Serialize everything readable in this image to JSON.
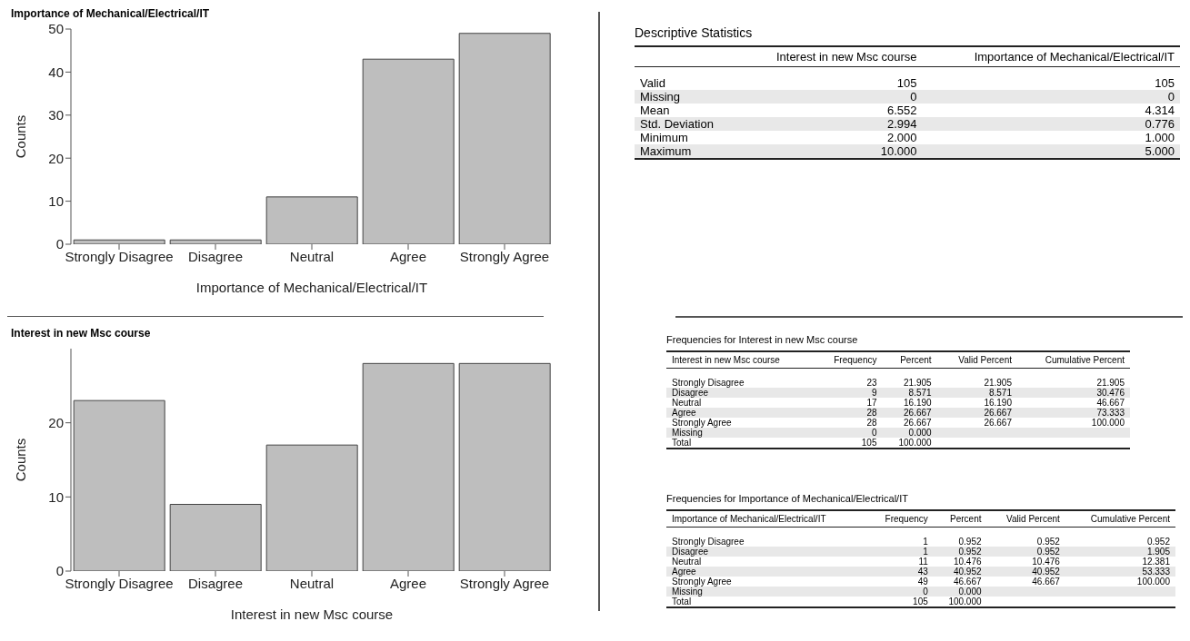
{
  "chart_data": [
    {
      "type": "bar",
      "title": "Importance of Mechanical/Electrical/IT",
      "categories": [
        "Strongly Disagree",
        "Disagree",
        "Neutral",
        "Agree",
        "Strongly Agree"
      ],
      "values": [
        1,
        1,
        11,
        43,
        49
      ],
      "color": "#bebebe",
      "ylim": [
        0,
        50
      ],
      "yticks": [
        0,
        10,
        20,
        30,
        40,
        50
      ],
      "xlabel": "Importance of Mechanical/Electrical/IT",
      "ylabel": "Counts",
      "grid": false
    },
    {
      "type": "bar",
      "title": "Interest in new Msc course",
      "categories": [
        "Strongly Disagree",
        "Disagree",
        "Neutral",
        "Agree",
        "Strongly Agree"
      ],
      "values": [
        23,
        9,
        17,
        28,
        28
      ],
      "color": "#bebebe",
      "ylim": [
        0,
        30
      ],
      "yticks": [
        0,
        10,
        20
      ],
      "xlabel": "Interest in new Msc course",
      "ylabel": "Counts",
      "grid": false
    },
    {
      "type": "other",
      "title": "Descriptive Statistics",
      "categories": [
        null,
        "Interest in new Msc course",
        "Importance of Mechanical/Electrical/IT"
      ],
      "y_categories": [
        "Valid",
        "Missing",
        "Mean",
        "Std. Deviation",
        "Minimum",
        "Maximum"
      ],
      "cell_labels": [
        [
          "105",
          "105"
        ],
        [
          "0",
          "0"
        ],
        [
          "6.552",
          "4.314"
        ],
        [
          "2.994",
          "0.776"
        ],
        [
          "2.000",
          "1.000"
        ],
        [
          "10.000",
          "5.000"
        ]
      ]
    },
    {
      "type": "other",
      "title": "Frequencies for Interest in new Msc course",
      "categories": [
        "Interest in new Msc course",
        "Frequency",
        "Percent",
        "Valid Percent",
        "Cumulative Percent"
      ],
      "y_categories": [
        "Strongly Disagree",
        "Disagree",
        "Neutral",
        "Agree",
        "Strongly Agree",
        "Missing",
        "Total"
      ],
      "cell_labels": [
        [
          "23",
          "21.905",
          "21.905",
          "21.905"
        ],
        [
          "9",
          "8.571",
          "8.571",
          "30.476"
        ],
        [
          "17",
          "16.190",
          "16.190",
          "46.667"
        ],
        [
          "28",
          "26.667",
          "26.667",
          "73.333"
        ],
        [
          "28",
          "26.667",
          "26.667",
          "100.000"
        ],
        [
          "0",
          "0.000",
          null,
          null
        ],
        [
          "105",
          "100.000",
          null,
          null
        ]
      ]
    },
    {
      "type": "other",
      "title": "Frequencies for Importance of Mechanical/Electrical/IT",
      "categories": [
        "Importance of Mechanical/Electrical/IT",
        "Frequency",
        "Percent",
        "Valid Percent",
        "Cumulative Percent"
      ],
      "y_categories": [
        "Strongly Disagree",
        "Disagree",
        "Neutral",
        "Agree",
        "Strongly Agree",
        "Missing",
        "Total"
      ],
      "cell_labels": [
        [
          "1",
          "0.952",
          "0.952",
          "0.952"
        ],
        [
          "1",
          "0.952",
          "0.952",
          "1.905"
        ],
        [
          "11",
          "10.476",
          "10.476",
          "12.381"
        ],
        [
          "43",
          "40.952",
          "40.952",
          "53.333"
        ],
        [
          "49",
          "46.667",
          "46.667",
          "100.000"
        ],
        [
          "0",
          "0.000",
          null,
          null
        ],
        [
          "105",
          "100.000",
          null,
          null
        ]
      ]
    }
  ]
}
